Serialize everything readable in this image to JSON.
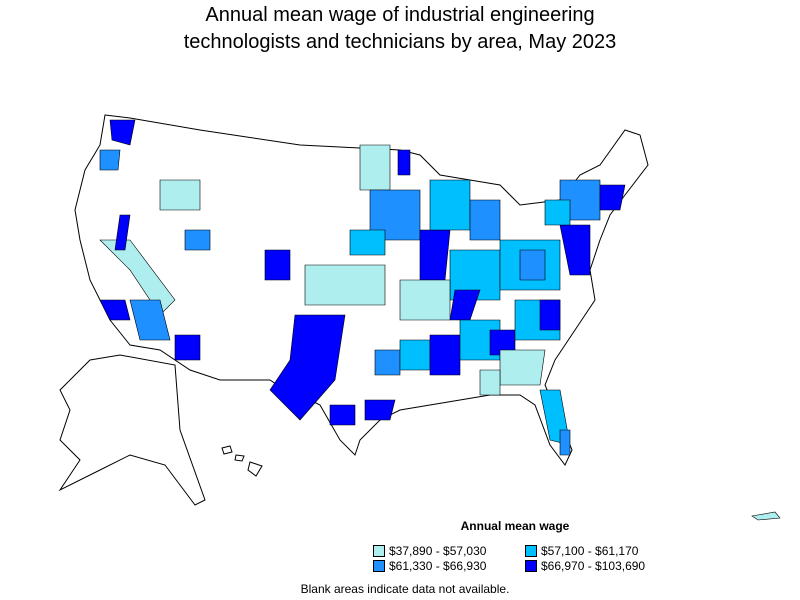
{
  "title_line1": "Annual mean wage of industrial engineering",
  "title_line2": "technologists and technicians by area, May 2023",
  "legend": {
    "title": "Annual mean wage",
    "items": [
      {
        "label": "$37,890 - $57,030",
        "color": "#afeeee"
      },
      {
        "label": "$57,100 - $61,170",
        "color": "#00bfff"
      },
      {
        "label": "$61,330 - $66,930",
        "color": "#1e90ff"
      },
      {
        "label": "$66,970 - $103,690",
        "color": "#0000ff"
      }
    ]
  },
  "note": "Blank areas indicate data not available."
}
